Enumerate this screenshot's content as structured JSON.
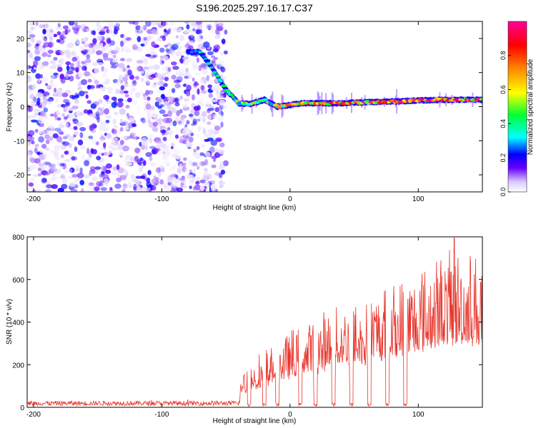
{
  "chart_data": [
    {
      "type": "heatmap",
      "title": "S196.2025.297.16.17.C37",
      "xlabel": "Height of straight line (km)",
      "ylabel": "Frequency (Hz)",
      "xlim": [
        -205,
        150
      ],
      "ylim": [
        -25,
        25
      ],
      "xticks": [
        -200,
        -100,
        0,
        100
      ],
      "yticks": [
        -20,
        -10,
        0,
        10,
        20
      ],
      "colorbar": {
        "label": "Normalized spectral amplitude",
        "range": [
          0,
          1
        ],
        "ticks": [
          0,
          0.2,
          0.4,
          0.6,
          0.8
        ],
        "tick_labels": [
          "0.0",
          "0.2",
          "0.4",
          "0.6",
          "0.8"
        ],
        "colors": [
          "#ffffff",
          "#6600ff",
          "#0000ff",
          "#00ffff",
          "#00ff00",
          "#ffff00",
          "#ff8800",
          "#ff0000",
          "#ff00aa"
        ]
      },
      "noise_region": {
        "x_range": [
          -205,
          -50
        ],
        "freq_range": [
          -25,
          25
        ],
        "amplitude": 0.15
      },
      "signal_track": {
        "x": [
          -80,
          -70,
          -60,
          -55,
          -50,
          -45,
          -40,
          -30,
          -20,
          -10,
          0,
          10,
          20,
          40,
          60,
          80,
          100,
          120,
          150
        ],
        "freq": [
          16,
          16,
          11,
          8,
          5,
          3,
          1,
          0.8,
          2,
          0,
          0.5,
          1,
          1,
          1,
          1.3,
          1.5,
          1.8,
          2,
          2
        ],
        "amplitude": [
          0.3,
          0.3,
          0.35,
          0.4,
          0.45,
          0.5,
          0.55,
          0.6,
          0.55,
          0.6,
          0.7,
          0.75,
          0.8,
          0.8,
          0.85,
          0.9,
          0.9,
          0.95,
          0.95
        ]
      }
    },
    {
      "type": "line",
      "xlabel": "Height of straight line (km)",
      "ylabel": "SNR (10 * v/v)",
      "xlim": [
        -205,
        150
      ],
      "ylim": [
        0,
        800
      ],
      "xticks": [
        -200,
        -100,
        0,
        100
      ],
      "yticks": [
        0,
        200,
        400,
        600,
        800
      ],
      "color": "#e8372e",
      "series": [
        {
          "name": "SNR",
          "envelope_x": [
            -205,
            -40,
            -38,
            -30,
            -20,
            -10,
            0,
            10,
            20,
            30,
            40,
            50,
            60,
            70,
            80,
            90,
            100,
            110,
            120,
            130,
            140,
            150
          ],
          "envelope_y": [
            20,
            20,
            150,
            200,
            240,
            300,
            320,
            360,
            380,
            420,
            450,
            460,
            470,
            510,
            540,
            560,
            600,
            640,
            660,
            680,
            680,
            670
          ],
          "dropout_x": [
            -32,
            -20,
            -10,
            8,
            20,
            34,
            48,
            62,
            76,
            90
          ],
          "peak": {
            "x": 128,
            "y": 795
          }
        }
      ]
    }
  ]
}
